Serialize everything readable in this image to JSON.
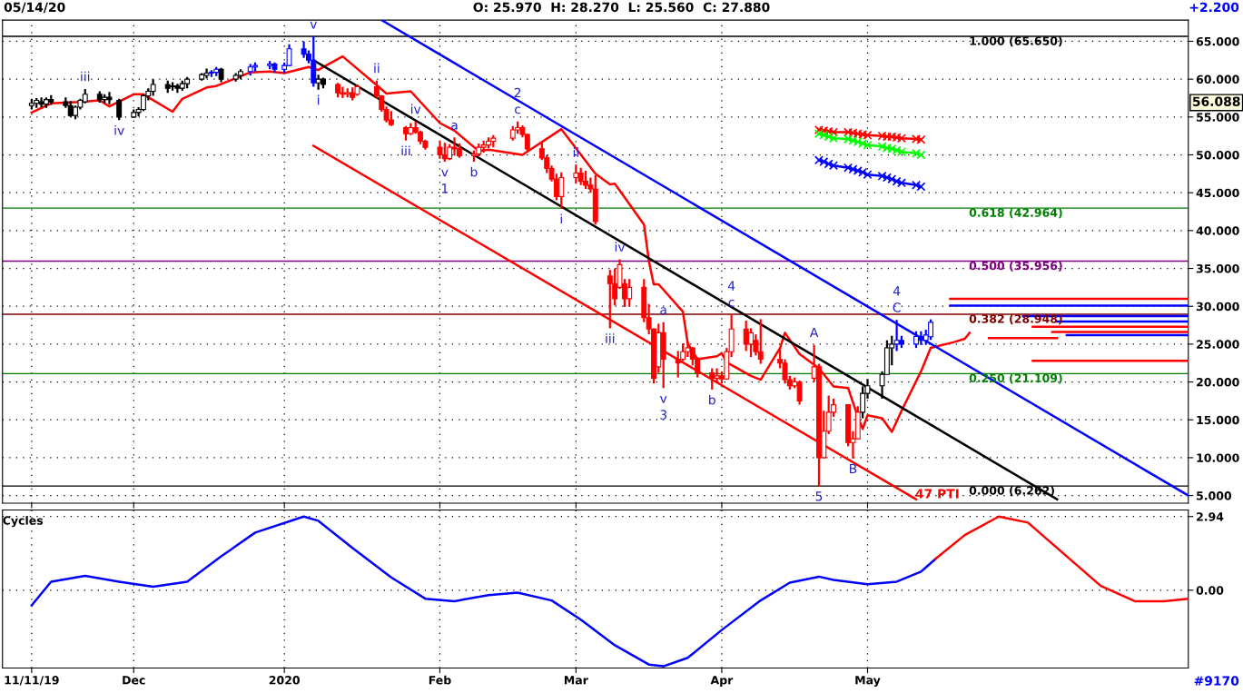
{
  "chart_data": [
    {
      "type": "candlestick",
      "tick_labels": "y",
      "grid": true,
      "xlim": [
        "2019-11-05",
        "2020-07-06"
      ],
      "xticks": [
        {
          "value": "2019-11-11",
          "label": null
        },
        {
          "value": "2019-12-02",
          "label": null
        },
        {
          "value": "2020-01-02",
          "label": null
        },
        {
          "value": "2020-02-03",
          "label": null
        },
        {
          "value": "2020-03-02",
          "label": null
        },
        {
          "value": "2020-04-01",
          "label": null
        },
        {
          "value": "2020-05-01",
          "label": null
        }
      ],
      "ylim": [
        4.0,
        67.8
      ],
      "yticks": [
        {
          "value": 5,
          "label": "5.000"
        },
        {
          "value": 10,
          "label": "10.000"
        },
        {
          "value": 15,
          "label": "15.000"
        },
        {
          "value": 20,
          "label": "20.000"
        },
        {
          "value": 25,
          "label": "25.000"
        },
        {
          "value": 30,
          "label": "30.000"
        },
        {
          "value": 35,
          "label": "35.000"
        },
        {
          "value": 40,
          "label": "40.000"
        },
        {
          "value": 45,
          "label": "45.000"
        },
        {
          "value": 50,
          "label": "50.000"
        },
        {
          "value": 55,
          "label": "55.000"
        },
        {
          "value": 60,
          "label": "60.000"
        },
        {
          "value": 65,
          "label": "65.000"
        }
      ],
      "x": [
        "2019-11-11",
        "2019-11-12",
        "2019-11-13",
        "2019-11-14",
        "2019-11-15",
        "2019-11-18",
        "2019-11-19",
        "2019-11-20",
        "2019-11-21",
        "2019-11-22",
        "2019-11-25",
        "2019-11-26",
        "2019-11-27",
        "2019-11-29",
        "2019-12-02",
        "2019-12-03",
        "2019-12-04",
        "2019-12-05",
        "2019-12-06",
        "2019-12-09",
        "2019-12-10",
        "2019-12-11",
        "2019-12-12",
        "2019-12-13",
        "2019-12-16",
        "2019-12-17",
        "2019-12-18",
        "2019-12-19",
        "2019-12-20",
        "2019-12-23",
        "2019-12-24",
        "2019-12-26",
        "2019-12-27",
        "2019-12-30",
        "2019-12-31",
        "2020-01-02",
        "2020-01-03",
        "2020-01-06",
        "2020-01-07",
        "2020-01-08",
        "2020-01-09",
        "2020-01-10",
        "2020-01-13",
        "2020-01-14",
        "2020-01-15",
        "2020-01-16",
        "2020-01-17",
        "2020-01-21",
        "2020-01-22",
        "2020-01-23",
        "2020-01-24",
        "2020-01-27",
        "2020-01-28",
        "2020-01-29",
        "2020-01-30",
        "2020-01-31",
        "2020-02-03",
        "2020-02-04",
        "2020-02-05",
        "2020-02-06",
        "2020-02-07",
        "2020-02-10",
        "2020-02-11",
        "2020-02-12",
        "2020-02-13",
        "2020-02-14",
        "2020-02-18",
        "2020-02-19",
        "2020-02-20",
        "2020-02-21",
        "2020-02-24",
        "2020-02-25",
        "2020-02-26",
        "2020-02-27",
        "2020-02-28",
        "2020-03-02",
        "2020-03-03",
        "2020-03-04",
        "2020-03-05",
        "2020-03-06",
        "2020-03-09",
        "2020-03-10",
        "2020-03-11",
        "2020-03-12",
        "2020-03-13",
        "2020-03-16",
        "2020-03-17",
        "2020-03-18",
        "2020-03-19",
        "2020-03-20",
        "2020-03-23",
        "2020-03-24",
        "2020-03-25",
        "2020-03-26",
        "2020-03-27",
        "2020-03-30",
        "2020-03-31",
        "2020-04-01",
        "2020-04-02",
        "2020-04-03",
        "2020-04-06",
        "2020-04-07",
        "2020-04-08",
        "2020-04-09",
        "2020-04-13",
        "2020-04-14",
        "2020-04-15",
        "2020-04-16",
        "2020-04-17",
        "2020-04-20",
        "2020-04-21",
        "2020-04-22",
        "2020-04-23",
        "2020-04-24",
        "2020-04-27",
        "2020-04-28",
        "2020-04-29",
        "2020-04-30",
        "2020-05-01",
        "2020-05-04",
        "2020-05-05",
        "2020-05-06",
        "2020-05-07",
        "2020-05-08",
        "2020-05-11",
        "2020-05-12",
        "2020-05-13",
        "2020-05-14"
      ],
      "ohlc": [
        [
          56.5,
          57.4,
          56.0,
          56.8
        ],
        [
          56.8,
          57.5,
          56.2,
          57.2
        ],
        [
          57.0,
          57.6,
          56.3,
          56.7
        ],
        [
          56.7,
          57.6,
          56.2,
          57.3
        ],
        [
          57.3,
          57.9,
          56.6,
          57.0
        ],
        [
          57.0,
          57.6,
          56.2,
          56.5
        ],
        [
          56.5,
          57.1,
          55.0,
          55.2
        ],
        [
          55.2,
          56.5,
          54.7,
          56.3
        ],
        [
          56.3,
          57.4,
          56.0,
          57.2
        ],
        [
          57.0,
          58.7,
          56.8,
          58.0
        ],
        [
          58.0,
          58.4,
          56.9,
          57.3
        ],
        [
          57.3,
          58.0,
          56.8,
          57.6
        ],
        [
          57.6,
          58.3,
          56.7,
          57.3
        ],
        [
          57.2,
          57.4,
          54.6,
          55.0
        ],
        [
          55.0,
          56.0,
          54.9,
          55.6
        ],
        [
          55.6,
          56.3,
          55.1,
          56.0
        ],
        [
          56.0,
          58.0,
          55.8,
          57.8
        ],
        [
          57.8,
          58.8,
          57.2,
          58.4
        ],
        [
          58.4,
          60.0,
          57.8,
          59.3
        ],
        [
          59.3,
          59.8,
          58.2,
          58.8
        ],
        [
          59.0,
          59.6,
          58.5,
          59.1
        ],
        [
          59.1,
          59.4,
          58.2,
          58.8
        ],
        [
          58.8,
          59.8,
          58.5,
          59.4
        ],
        [
          59.4,
          60.3,
          58.8,
          60.0
        ],
        [
          60.0,
          60.8,
          59.8,
          60.6
        ],
        [
          60.5,
          61.4,
          60.1,
          60.8
        ],
        [
          60.8,
          61.2,
          60.3,
          60.9
        ],
        [
          60.9,
          61.6,
          60.4,
          61.3
        ],
        [
          61.3,
          61.5,
          59.6,
          60.0
        ],
        [
          60.0,
          60.8,
          59.7,
          60.5
        ],
        [
          60.5,
          61.3,
          60.0,
          61.0
        ],
        [
          61.0,
          62.0,
          60.5,
          61.6
        ],
        [
          61.6,
          62.2,
          61.0,
          61.8
        ],
        [
          61.8,
          62.4,
          61.3,
          62.0
        ],
        [
          62.0,
          62.2,
          60.9,
          61.3
        ],
        [
          61.3,
          62.2,
          60.8,
          61.8
        ],
        [
          61.8,
          64.6,
          61.7,
          64.0
        ],
        [
          64.0,
          65.0,
          62.8,
          63.3
        ],
        [
          63.3,
          63.8,
          62.1,
          62.5
        ],
        [
          62.5,
          65.65,
          59.0,
          59.5
        ],
        [
          59.5,
          60.6,
          58.6,
          60.0
        ],
        [
          60.0,
          60.2,
          58.8,
          59.3
        ],
        [
          59.3,
          59.5,
          57.6,
          58.2
        ],
        [
          58.2,
          59.0,
          57.5,
          58.0
        ],
        [
          58.0,
          58.8,
          57.6,
          58.2
        ],
        [
          58.2,
          58.9,
          57.2,
          57.6
        ],
        [
          58.0,
          59.3,
          57.8,
          59.0
        ],
        [
          59.0,
          59.8,
          57.4,
          57.8
        ],
        [
          57.8,
          57.9,
          55.7,
          56.0
        ],
        [
          56.0,
          56.4,
          54.3,
          54.6
        ],
        [
          54.6,
          55.8,
          53.8,
          54.0
        ],
        [
          53.6,
          53.8,
          51.9,
          52.8
        ],
        [
          52.8,
          54.2,
          52.6,
          53.6
        ],
        [
          53.6,
          54.4,
          52.8,
          53.0
        ],
        [
          53.0,
          53.2,
          51.4,
          51.8
        ],
        [
          51.8,
          52.0,
          50.7,
          51.0
        ],
        [
          51.0,
          51.9,
          49.5,
          50.0
        ],
        [
          50.0,
          51.6,
          49.1,
          49.5
        ],
        [
          49.5,
          51.4,
          49.3,
          51.0
        ],
        [
          51.0,
          52.3,
          49.9,
          50.8
        ],
        [
          50.8,
          51.5,
          49.6,
          49.9
        ],
        [
          49.9,
          50.6,
          49.1,
          50.1
        ],
        [
          50.1,
          51.5,
          49.8,
          51.0
        ],
        [
          51.0,
          51.9,
          50.3,
          51.3
        ],
        [
          51.3,
          52.3,
          50.9,
          51.8
        ],
        [
          51.8,
          52.6,
          51.0,
          52.2
        ],
        [
          52.2,
          53.8,
          51.9,
          53.3
        ],
        [
          53.3,
          54.4,
          52.8,
          53.6
        ],
        [
          53.6,
          53.9,
          52.3,
          52.7
        ],
        [
          52.7,
          52.8,
          50.4,
          50.8
        ],
        [
          50.8,
          51.8,
          49.3,
          49.6
        ],
        [
          49.6,
          50.0,
          47.6,
          48.2
        ],
        [
          48.2,
          48.6,
          46.5,
          46.8
        ],
        [
          46.8,
          47.5,
          44.0,
          44.5
        ],
        [
          44.5,
          47.7,
          42.9,
          47.0
        ],
        [
          47.0,
          48.7,
          46.2,
          47.6
        ],
        [
          47.6,
          48.3,
          46.0,
          46.5
        ],
        [
          46.5,
          47.9,
          45.5,
          46.0
        ],
        [
          46.0,
          47.0,
          45.0,
          45.5
        ],
        [
          45.5,
          47.3,
          40.8,
          41.2
        ],
        [
          34.0,
          34.8,
          27.1,
          33.0
        ],
        [
          33.0,
          35.0,
          30.1,
          31.0
        ],
        [
          32.5,
          36.2,
          32.3,
          35.5
        ],
        [
          33.0,
          33.6,
          29.9,
          31.0
        ],
        [
          31.0,
          33.6,
          30.0,
          32.5
        ],
        [
          32.5,
          33.6,
          27.9,
          28.5
        ],
        [
          28.5,
          30.3,
          26.3,
          27.0
        ],
        [
          27.0,
          27.1,
          19.8,
          20.5
        ],
        [
          22.0,
          27.7,
          21.2,
          26.5
        ],
        [
          26.5,
          27.9,
          19.2,
          23.0
        ],
        [
          23.0,
          24.1,
          20.6,
          22.5
        ],
        [
          23.0,
          25.1,
          22.8,
          24.0
        ],
        [
          24.0,
          25.3,
          23.3,
          24.5
        ],
        [
          24.5,
          24.6,
          22.2,
          23.0
        ],
        [
          23.0,
          23.3,
          20.6,
          21.2
        ],
        [
          21.2,
          21.8,
          19.0,
          20.5
        ],
        [
          20.5,
          21.8,
          20.0,
          20.8
        ],
        [
          20.8,
          21.4,
          19.8,
          20.4
        ],
        [
          20.4,
          24.5,
          20.3,
          24.0
        ],
        [
          24.0,
          28.9,
          23.3,
          27.0
        ],
        [
          27.0,
          28.1,
          24.1,
          25.0
        ],
        [
          25.0,
          27.1,
          23.3,
          26.5
        ],
        [
          25.5,
          26.3,
          23.5,
          24.0
        ],
        [
          24.0,
          28.3,
          22.4,
          23.0
        ],
        [
          23.0,
          24.5,
          21.8,
          22.5
        ],
        [
          22.5,
          23.0,
          19.8,
          20.3
        ],
        [
          20.3,
          20.8,
          19.0,
          19.5
        ],
        [
          19.5,
          20.6,
          19.2,
          20.0
        ],
        [
          20.0,
          20.2,
          17.0,
          17.5
        ],
        [
          20.5,
          24.9,
          20.0,
          22.0
        ],
        [
          22.0,
          22.4,
          6.262,
          10.0
        ],
        [
          10.0,
          16.2,
          9.9,
          13.5
        ],
        [
          13.5,
          18.2,
          13.1,
          16.0
        ],
        [
          16.0,
          17.8,
          15.4,
          17.0
        ],
        [
          17.0,
          17.0,
          11.5,
          12.0
        ],
        [
          12.0,
          13.5,
          9.9,
          12.5
        ],
        [
          12.5,
          16.8,
          12.5,
          16.0
        ],
        [
          16.0,
          19.4,
          15.2,
          18.5
        ],
        [
          18.5,
          20.4,
          17.8,
          19.5
        ],
        [
          19.5,
          21.4,
          17.8,
          21.0
        ],
        [
          21.0,
          25.5,
          21.0,
          24.5
        ],
        [
          24.5,
          26.1,
          22.2,
          25.0
        ],
        [
          25.0,
          28.2,
          24.1,
          25.5
        ],
        [
          25.5,
          26.1,
          24.5,
          25.0
        ],
        [
          25.0,
          26.7,
          24.5,
          26.0
        ],
        [
          26.0,
          26.7,
          24.9,
          25.5
        ],
        [
          25.5,
          26.9,
          24.9,
          26.2
        ],
        [
          25.97,
          28.27,
          25.56,
          27.88
        ]
      ],
      "colors": [
        "#000000",
        "#000000",
        "#000000",
        "#000000",
        "#000000",
        "#000000",
        "#000000",
        "#000000",
        "#000000",
        "#000000",
        "#000000",
        "#000000",
        "#000000",
        "#000000",
        "#000000",
        "#000000",
        "#000000",
        "#000000",
        "#000000",
        "#000000",
        "#000000",
        "#000000",
        "#000000",
        "#000000",
        "#000000",
        "#000000",
        "#0000ff",
        "#0000ff",
        "#000000",
        "#000000",
        "#000000",
        "#0000ff",
        "#0000ff",
        "#0000ff",
        "#0000ff",
        "#0000ff",
        "#0000ff",
        "#0000ff",
        "#0000ff",
        "#0000ff",
        "#000000",
        "#000000",
        "#ff0000",
        "#ff0000",
        "#ff0000",
        "#ff0000",
        "#ff0000",
        "#ff0000",
        "#ff0000",
        "#ff0000",
        "#ff0000",
        "#ff0000",
        "#ff0000",
        "#ff0000",
        "#ff0000",
        "#ff0000",
        "#ff0000",
        "#ff0000",
        "#ff0000",
        "#ff0000",
        "#ff0000",
        "#ff0000",
        "#ff0000",
        "#ff0000",
        "#ff0000",
        "#ff0000",
        "#ff0000",
        "#ff0000",
        "#ff0000",
        "#ff0000",
        "#ff0000",
        "#ff0000",
        "#ff0000",
        "#ff0000",
        "#ff0000",
        "#ff0000",
        "#ff0000",
        "#ff0000",
        "#ff0000",
        "#ff0000",
        "#ff0000",
        "#ff0000",
        "#ff0000",
        "#ff0000",
        "#ff0000",
        "#ff0000",
        "#ff0000",
        "#ff0000",
        "#ff0000",
        "#ff0000",
        "#ff0000",
        "#ff0000",
        "#ff0000",
        "#ff0000",
        "#ff0000",
        "#ff0000",
        "#ff0000",
        "#ff0000",
        "#ff0000",
        "#ff0000",
        "#ff0000",
        "#ff0000",
        "#ff0000",
        "#ff0000",
        "#ff0000",
        "#ff0000",
        "#ff0000",
        "#ff0000",
        "#ff0000",
        "#ff0000",
        "#ff0000",
        "#ff0000",
        "#ff0000",
        "#ff0000",
        "#ff0000",
        "#ff0000",
        "#ff0000",
        "#000000",
        "#000000",
        "#000000",
        "#000000",
        "#000000",
        "#0000ff",
        "#0000ff",
        "#0000ff",
        "#0000ff",
        "#0000ff",
        "#0000ff"
      ],
      "series": [
        {
          "type": "line",
          "color": "#ff0000",
          "x": [
            "2019-11-11",
            "2019-11-15",
            "2019-11-21",
            "2019-11-25",
            "2019-11-27",
            "2019-12-02",
            "2019-12-04",
            "2019-12-10",
            "2019-12-12",
            "2019-12-17",
            "2019-12-19",
            "2019-12-26",
            "2019-12-30",
            "2020-01-02",
            "2020-01-07",
            "2020-01-09",
            "2020-01-10",
            "2020-01-14",
            "2020-01-21",
            "2020-01-23",
            "2020-01-28",
            "2020-02-03",
            "2020-02-06",
            "2020-02-11",
            "2020-02-13",
            "2020-02-20",
            "2020-02-28",
            "2020-03-06",
            "2020-03-09",
            "2020-03-10",
            "2020-03-16",
            "2020-03-17",
            "2020-03-18",
            "2020-03-19",
            "2020-03-24",
            "2020-03-25",
            "2020-03-27",
            "2020-03-31",
            "2020-04-01",
            "2020-04-02",
            "2020-04-07",
            "2020-04-09",
            "2020-04-13",
            "2020-04-14",
            "2020-04-17",
            "2020-04-21",
            "2020-04-24",
            "2020-04-27",
            "2020-04-29",
            "2020-04-30",
            "2020-05-01",
            "2020-05-04",
            "2020-05-06",
            "2020-05-08",
            "2020-05-12",
            "2020-05-14",
            "2020-05-19",
            "2020-05-21",
            "2020-05-22"
          ],
          "values": [
            55.6,
            56.8,
            57.0,
            57.2,
            56.4,
            58.0,
            58.0,
            55.7,
            57.4,
            58.9,
            59.1,
            60.9,
            61.0,
            60.8,
            61.6,
            61.2,
            61.6,
            63.0,
            59.2,
            58.1,
            58.4,
            54.2,
            53.2,
            50.5,
            50.7,
            50.0,
            53.4,
            47.5,
            46.1,
            46.2,
            40.8,
            36.0,
            32.9,
            32.9,
            29.3,
            25.1,
            23.0,
            23.4,
            23.8,
            22.6,
            20.8,
            20.3,
            24.5,
            26.5,
            23.7,
            21.8,
            19.4,
            19.2,
            15.4,
            13.8,
            15.6,
            15.2,
            13.4,
            16.2,
            21.4,
            24.5,
            25.3,
            25.7,
            26.5
          ]
        },
        {
          "type": "line",
          "color": "#000000",
          "x": [
            "2020-01-08",
            "2020-06-09"
          ],
          "values": [
            62.5,
            4.5
          ]
        },
        {
          "type": "line",
          "color": "#0000ff",
          "x": [
            "2020-01-22",
            "2020-07-06"
          ],
          "values": [
            67.8,
            5.0
          ]
        },
        {
          "type": "line",
          "color": "#ff0000",
          "x": [
            "2020-01-08",
            "2020-05-11"
          ],
          "values": [
            51.2,
            4.5
          ]
        },
        {
          "type": "line",
          "color": "#ff0000",
          "marker": "cross",
          "x": [
            "2020-04-21",
            "2020-04-22",
            "2020-04-23",
            "2020-04-24",
            "2020-04-27",
            "2020-04-28",
            "2020-04-29",
            "2020-04-30",
            "2020-05-01",
            "2020-05-04",
            "2020-05-05",
            "2020-05-06",
            "2020-05-07",
            "2020-05-08",
            "2020-05-11",
            "2020-05-12"
          ],
          "values": [
            53.3,
            53.2,
            53.1,
            53.0,
            53.0,
            52.9,
            52.8,
            52.7,
            52.6,
            52.5,
            52.4,
            52.4,
            52.3,
            52.2,
            52.1,
            52.0
          ]
        },
        {
          "type": "line",
          "color": "#00ff00",
          "marker": "cross",
          "x": [
            "2020-04-21",
            "2020-04-22",
            "2020-04-23",
            "2020-04-24",
            "2020-04-27",
            "2020-04-28",
            "2020-04-29",
            "2020-04-30",
            "2020-05-01",
            "2020-05-04",
            "2020-05-05",
            "2020-05-06",
            "2020-05-07",
            "2020-05-08",
            "2020-05-11",
            "2020-05-12"
          ],
          "values": [
            52.8,
            52.6,
            52.4,
            52.2,
            52.1,
            51.9,
            51.7,
            51.5,
            51.3,
            51.1,
            50.9,
            50.8,
            50.6,
            50.4,
            50.2,
            50.0
          ]
        },
        {
          "type": "line",
          "color": "#0000ff",
          "marker": "cross",
          "x": [
            "2020-04-21",
            "2020-04-22",
            "2020-04-23",
            "2020-04-24",
            "2020-04-27",
            "2020-04-28",
            "2020-04-29",
            "2020-04-30",
            "2020-05-01",
            "2020-05-04",
            "2020-05-05",
            "2020-05-06",
            "2020-05-07",
            "2020-05-08",
            "2020-05-11",
            "2020-05-12"
          ],
          "values": [
            49.3,
            49.1,
            48.8,
            48.6,
            48.3,
            48.1,
            47.9,
            47.7,
            47.4,
            47.2,
            47.0,
            46.8,
            46.5,
            46.3,
            46.0,
            45.8
          ]
        },
        {
          "type": "line",
          "color": "#0000ff",
          "x": [
            "2020-05-18",
            "2020-07-06"
          ],
          "values": [
            30.1,
            30.1
          ]
        },
        {
          "type": "line",
          "color": "#ff0000",
          "x": [
            "2020-06-04",
            "2020-07-06"
          ],
          "values": [
            22.8,
            22.8
          ]
        },
        {
          "type": "line",
          "color": "#ff0000",
          "x": [
            "2020-05-18",
            "2020-07-06"
          ],
          "values": [
            31.0,
            31.0
          ]
        },
        {
          "type": "line",
          "color": "#0000ff",
          "x": [
            "2020-06-02",
            "2020-07-06"
          ],
          "values": [
            28.7,
            28.7
          ]
        },
        {
          "type": "line",
          "color": "#0000ff",
          "x": [
            "2020-06-09",
            "2020-07-06"
          ],
          "values": [
            28.0,
            28.0
          ]
        },
        {
          "type": "line",
          "color": "#ff0000",
          "x": [
            "2020-06-04",
            "2020-07-06"
          ],
          "values": [
            27.3,
            27.3
          ]
        },
        {
          "type": "line",
          "color": "#ff0000",
          "x": [
            "2020-06-08",
            "2020-07-06"
          ],
          "values": [
            26.6,
            26.6
          ]
        },
        {
          "type": "line",
          "color": "#0000ff",
          "x": [
            "2020-06-11",
            "2020-07-06"
          ],
          "values": [
            26.2,
            26.2
          ]
        },
        {
          "type": "line",
          "color": "#ff0000",
          "x": [
            "2020-05-26",
            "2020-06-09"
          ],
          "values": [
            25.8,
            25.8
          ]
        }
      ],
      "ref_lines": [
        {
          "axis": "y",
          "value": 65.65,
          "label": "1.000 (65.650)",
          "color": "#000000"
        },
        {
          "axis": "y",
          "value": 42.964,
          "label": "0.618 (42.964)",
          "color": "#008000"
        },
        {
          "axis": "y",
          "value": 35.956,
          "label": "0.500 (35.956)",
          "color": "#800080"
        },
        {
          "axis": "y",
          "value": 28.948,
          "label": "0.382 (28.948)",
          "color": "#800000"
        },
        {
          "axis": "y",
          "value": 21.109,
          "label": "0.250 (21.109)",
          "color": "#008000"
        },
        {
          "axis": "y",
          "value": 6.262,
          "label": "0.000 (6.262)",
          "color": "#000000"
        }
      ],
      "annotations": [
        "05/14/20",
        "O: 25.970  H: 28.270  L: 25.560  C: 27.880",
        "+2.200",
        "56.088",
        "47 PTI",
        {
          "text": "iii",
          "x": "2019-11-22",
          "y": 58.7
        },
        {
          "text": "iv",
          "x": "2019-11-29",
          "y": 54.6
        },
        {
          "text": "v",
          "x": "2020-01-08",
          "y": 65.65
        },
        {
          "text": "i",
          "x": "2020-01-09",
          "y": 58.6
        },
        {
          "text": "ii",
          "x": "2020-01-21",
          "y": 59.8
        },
        {
          "text": "iii",
          "x": "2020-01-27",
          "y": 51.9
        },
        {
          "text": "iv",
          "x": "2020-01-29",
          "y": 54.4
        },
        {
          "text": "v",
          "x": "2020-02-04",
          "y": 49.1
        },
        {
          "text": "1",
          "x": "2020-02-04",
          "y": 49.1
        },
        {
          "text": "a",
          "x": "2020-02-06",
          "y": 52.3
        },
        {
          "text": "b",
          "x": "2020-02-10",
          "y": 49.1
        },
        {
          "text": "c",
          "x": "2020-02-19",
          "y": 54.4
        },
        {
          "text": "2",
          "x": "2020-02-19",
          "y": 54.4
        },
        {
          "text": "i",
          "x": "2020-02-28",
          "y": 42.9
        },
        {
          "text": "ii",
          "x": "2020-03-02",
          "y": 48.7
        },
        {
          "text": "iii",
          "x": "2020-03-09",
          "y": 27.1
        },
        {
          "text": "iv",
          "x": "2020-03-11",
          "y": 36.2
        },
        {
          "text": "a",
          "x": "2020-03-20",
          "y": 27.9
        },
        {
          "text": "v",
          "x": "2020-03-20",
          "y": 19.2
        },
        {
          "text": "3",
          "x": "2020-03-20",
          "y": 19.2
        },
        {
          "text": "b",
          "x": "2020-03-30",
          "y": 19.0
        },
        {
          "text": "c",
          "x": "2020-04-03",
          "y": 28.9
        },
        {
          "text": "4",
          "x": "2020-04-03",
          "y": 28.9
        },
        {
          "text": "A",
          "x": "2020-04-20",
          "y": 24.9
        },
        {
          "text": "5",
          "x": "2020-04-21",
          "y": 6.262
        },
        {
          "text": "B",
          "x": "2020-04-28",
          "y": 9.9
        },
        {
          "text": "C",
          "x": "2020-05-07",
          "y": 28.2
        },
        {
          "text": "4",
          "x": "2020-05-07",
          "y": 28.2
        }
      ]
    },
    {
      "type": "line",
      "title": "Cycles",
      "grid": true,
      "xlim": [
        "2019-11-05",
        "2020-07-06"
      ],
      "xticks": [
        {
          "value": "2019-11-11",
          "label": "11/11/19"
        },
        {
          "value": "2019-12-02",
          "label": "Dec"
        },
        {
          "value": "2020-01-02",
          "label": "2020"
        },
        {
          "value": "2020-02-03",
          "label": "Feb"
        },
        {
          "value": "2020-03-02",
          "label": "Mar"
        },
        {
          "value": "2020-04-01",
          "label": "Apr"
        },
        {
          "value": "2020-05-01",
          "label": "May"
        }
      ],
      "ylim": [
        -3.11,
        3.2
      ],
      "yticks": [
        {
          "value": 0,
          "label": "0.00"
        },
        {
          "value": 2.94,
          "label": "2.94"
        }
      ],
      "series": [
        {
          "color": "#0000ff",
          "x": [
            "2019-11-11",
            "2019-11-15",
            "2019-11-22",
            "2019-11-29",
            "2019-12-06",
            "2019-12-13",
            "2019-12-20",
            "2019-12-27",
            "2020-01-06",
            "2020-01-09",
            "2020-01-16",
            "2020-01-24",
            "2020-01-31",
            "2020-02-06",
            "2020-02-13",
            "2020-02-19",
            "2020-02-26",
            "2020-03-03",
            "2020-03-10",
            "2020-03-17",
            "2020-03-20",
            "2020-03-25",
            "2020-04-01",
            "2020-04-09",
            "2020-04-15",
            "2020-04-21",
            "2020-04-24",
            "2020-05-01",
            "2020-05-07",
            "2020-05-12",
            "2020-05-15"
          ],
          "values": [
            -0.61,
            0.34,
            0.57,
            0.34,
            0.14,
            0.34,
            1.35,
            2.3,
            2.94,
            2.77,
            1.69,
            0.51,
            -0.34,
            -0.44,
            -0.2,
            -0.1,
            -0.41,
            -1.18,
            -2.2,
            -2.97,
            -3.04,
            -2.7,
            -1.59,
            -0.41,
            0.3,
            0.54,
            0.41,
            0.24,
            0.34,
            0.74,
            1.25
          ]
        },
        {
          "color": "#ff0000",
          "x": [
            "2020-05-15",
            "2020-05-21",
            "2020-05-28",
            "2020-06-03",
            "2020-06-11",
            "2020-06-18",
            "2020-06-25",
            "2020-07-01",
            "2020-07-06"
          ],
          "values": [
            1.25,
            2.2,
            2.94,
            2.7,
            1.35,
            0.17,
            -0.44,
            -0.44,
            -0.34
          ]
        }
      ],
      "annotations": [
        "#9170"
      ]
    }
  ]
}
